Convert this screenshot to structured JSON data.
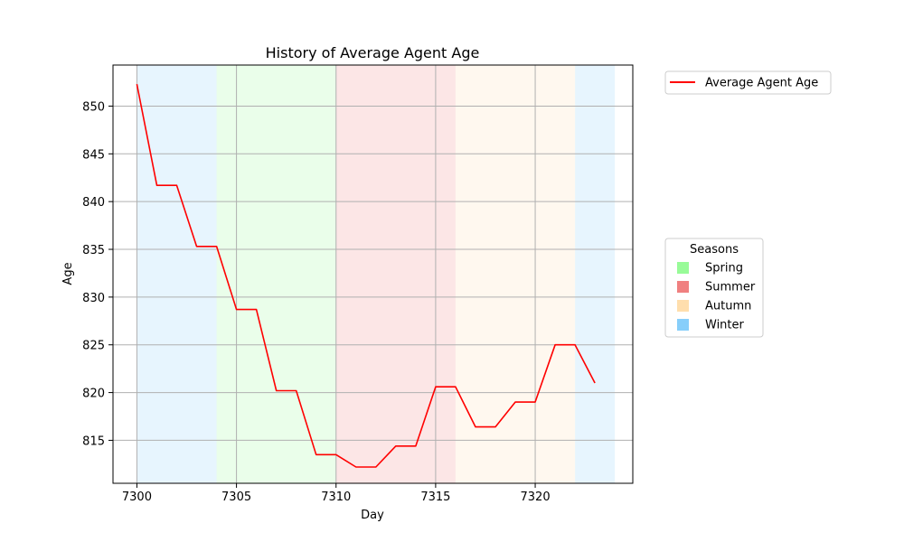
{
  "chart_data": {
    "type": "line",
    "title": "History of Average Agent Age",
    "xlabel": "Day",
    "ylabel": "Age",
    "xlim": [
      7298.8,
      7324.9
    ],
    "ylim": [
      810.5,
      854.3
    ],
    "xticks": [
      7300,
      7305,
      7310,
      7315,
      7320
    ],
    "yticks": [
      815,
      820,
      825,
      830,
      835,
      840,
      845,
      850
    ],
    "grid": true,
    "series": [
      {
        "name": "Average Agent Age",
        "color": "#ff0000",
        "x": [
          7300,
          7301,
          7302,
          7303,
          7304,
          7305,
          7306,
          7307,
          7308,
          7309,
          7310,
          7311,
          7312,
          7313,
          7314,
          7315,
          7316,
          7317,
          7318,
          7319,
          7320,
          7321,
          7322,
          7323
        ],
        "y": [
          852.3,
          841.7,
          841.7,
          835.3,
          835.3,
          828.7,
          828.7,
          820.2,
          820.2,
          813.5,
          813.5,
          812.2,
          812.2,
          814.4,
          814.4,
          820.6,
          820.6,
          816.4,
          816.4,
          819.0,
          819.0,
          825.0,
          825.0,
          821.0
        ]
      }
    ],
    "season_bands": [
      {
        "season": "Winter",
        "start": 7300,
        "end": 7304
      },
      {
        "season": "Spring",
        "start": 7304,
        "end": 7310
      },
      {
        "season": "Summer",
        "start": 7310,
        "end": 7316
      },
      {
        "season": "Autumn",
        "start": 7316,
        "end": 7322
      },
      {
        "season": "Winter",
        "start": 7322,
        "end": 7324
      }
    ],
    "legend_series_placement": "outside top-right",
    "seasons_legend": {
      "title": "Seasons",
      "placement": "outside right",
      "entries": [
        {
          "label": "Spring",
          "color": "#98fb98"
        },
        {
          "label": "Summer",
          "color": "#f08080"
        },
        {
          "label": "Autumn",
          "color": "#ffdead"
        },
        {
          "label": "Winter",
          "color": "#87cefa"
        }
      ]
    }
  }
}
